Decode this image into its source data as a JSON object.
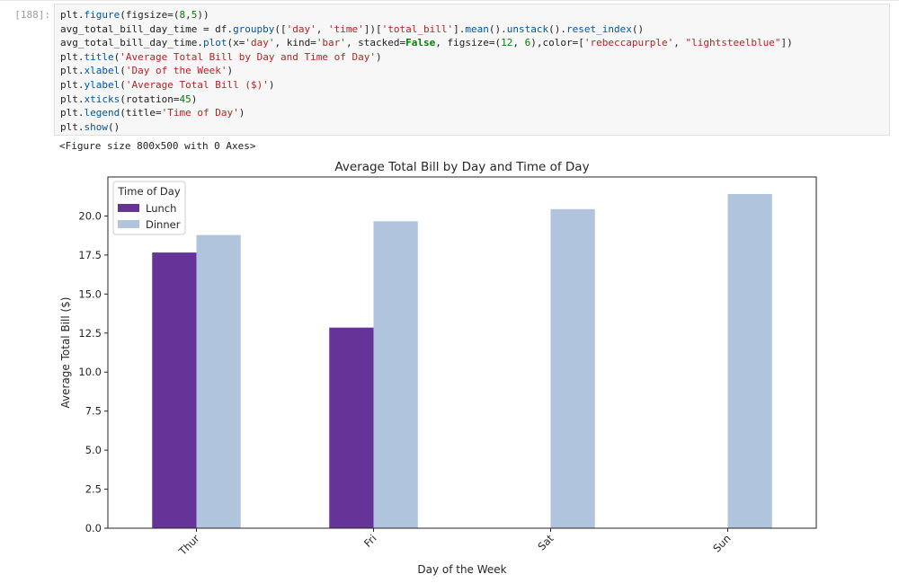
{
  "cell": {
    "prompt": "[188]:",
    "code_lines": [
      [
        {
          "t": "plt."
        },
        {
          "t": "figure",
          "c": "fn"
        },
        {
          "t": "(figsize=("
        },
        {
          "t": "8",
          "c": "nm"
        },
        {
          "t": ","
        },
        {
          "t": "5",
          "c": "nm"
        },
        {
          "t": "))"
        }
      ],
      [
        {
          "t": "avg_total_bill_day_time = df."
        },
        {
          "t": "groupby",
          "c": "fn"
        },
        {
          "t": "(["
        },
        {
          "t": "'day'",
          "c": "st"
        },
        {
          "t": ", "
        },
        {
          "t": "'time'",
          "c": "st"
        },
        {
          "t": "])["
        },
        {
          "t": "'total_bill'",
          "c": "st"
        },
        {
          "t": "]."
        },
        {
          "t": "mean",
          "c": "fn"
        },
        {
          "t": "()."
        },
        {
          "t": "unstack",
          "c": "fn"
        },
        {
          "t": "()."
        },
        {
          "t": "reset_index",
          "c": "fn"
        },
        {
          "t": "()"
        }
      ],
      [
        {
          "t": "avg_total_bill_day_time."
        },
        {
          "t": "plot",
          "c": "fn"
        },
        {
          "t": "(x="
        },
        {
          "t": "'day'",
          "c": "st"
        },
        {
          "t": ", kind="
        },
        {
          "t": "'bar'",
          "c": "st"
        },
        {
          "t": ", stacked="
        },
        {
          "t": "False",
          "c": "kw"
        },
        {
          "t": ", figsize=("
        },
        {
          "t": "12",
          "c": "nm"
        },
        {
          "t": ", "
        },
        {
          "t": "6",
          "c": "nm"
        },
        {
          "t": "),color=["
        },
        {
          "t": "'rebeccapurple'",
          "c": "st"
        },
        {
          "t": ", "
        },
        {
          "t": "\"lightsteelblue\"",
          "c": "st"
        },
        {
          "t": "])"
        }
      ],
      [
        {
          "t": "plt."
        },
        {
          "t": "title",
          "c": "fn"
        },
        {
          "t": "("
        },
        {
          "t": "'Average Total Bill by Day and Time of Day'",
          "c": "st"
        },
        {
          "t": ")"
        }
      ],
      [
        {
          "t": "plt."
        },
        {
          "t": "xlabel",
          "c": "fn"
        },
        {
          "t": "("
        },
        {
          "t": "'Day of the Week'",
          "c": "st"
        },
        {
          "t": ")"
        }
      ],
      [
        {
          "t": "plt."
        },
        {
          "t": "ylabel",
          "c": "fn"
        },
        {
          "t": "("
        },
        {
          "t": "'Average Total Bill ($)'",
          "c": "st"
        },
        {
          "t": ")"
        }
      ],
      [
        {
          "t": "plt."
        },
        {
          "t": "xticks",
          "c": "fn"
        },
        {
          "t": "(rotation="
        },
        {
          "t": "45",
          "c": "nm"
        },
        {
          "t": ")"
        }
      ],
      [
        {
          "t": "plt."
        },
        {
          "t": "legend",
          "c": "fn"
        },
        {
          "t": "(title="
        },
        {
          "t": "'Time of Day'",
          "c": "st"
        },
        {
          "t": ")"
        }
      ],
      [
        {
          "t": "plt."
        },
        {
          "t": "show",
          "c": "fn"
        },
        {
          "t": "()"
        }
      ]
    ],
    "stdout": "<Figure size 800x500 with 0 Axes>"
  },
  "chart_data": {
    "type": "bar",
    "title": "Average Total Bill by Day and Time of Day",
    "xlabel": "Day of the Week",
    "ylabel": "Average Total Bill ($)",
    "categories": [
      "Thur",
      "Fri",
      "Sat",
      "Sun"
    ],
    "series": [
      {
        "name": "Lunch",
        "color": "#663399",
        "values": [
          17.66,
          12.85,
          null,
          null
        ]
      },
      {
        "name": "Dinner",
        "color": "#b0c4de",
        "values": [
          18.78,
          19.66,
          20.44,
          21.41
        ]
      }
    ],
    "ylim": [
      0,
      22.5
    ],
    "yticks": [
      "0.0",
      "2.5",
      "5.0",
      "7.5",
      "10.0",
      "12.5",
      "15.0",
      "17.5",
      "20.0"
    ],
    "legend": {
      "title": "Time of Day",
      "position": "top-left"
    },
    "grid": false,
    "xtick_rotation": 45
  }
}
